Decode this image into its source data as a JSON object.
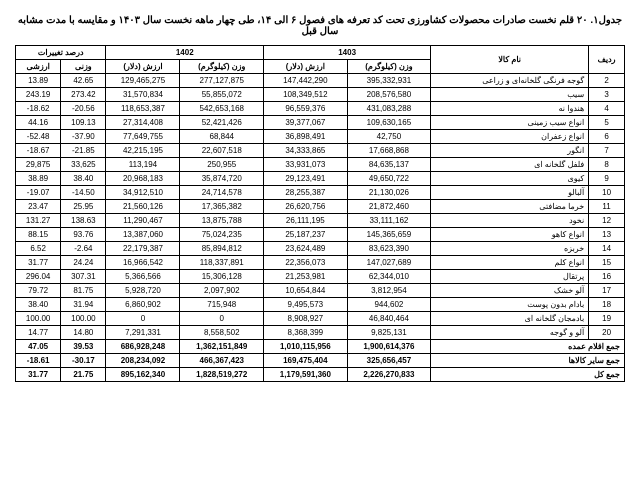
{
  "title": "جدول۱. ۲۰ قلم نخست صادرات محصولات کشاورزی تحت کد تعرفه های فصول ۶ الی ۱۴، طی چهار ماهه نخست سال ۱۴۰۳ و مقایسه با مدت مشابه سال قبل",
  "headers": {
    "row_no": "ردیف",
    "name": "نام کالا",
    "y1403": "1403",
    "y1402": "1402",
    "pct": "درصد تغییرات",
    "weight_kg": "وزن (کیلوگرم)",
    "value_usd": "ارزش (دلار)",
    "weight": "وزنی",
    "value": "ارزشی"
  },
  "rows": [
    {
      "n": "2",
      "name": "گوجه فرنگی گلخانه‌ای و زراعی",
      "w1403": "395,332,931",
      "v1403": "147,442,290",
      "w1402": "277,127,875",
      "v1402": "129,465,275",
      "pw": "42.65",
      "pv": "13.89"
    },
    {
      "n": "3",
      "name": "سیب",
      "w1403": "208,576,580",
      "v1403": "108,349,512",
      "w1402": "55,855,072",
      "v1402": "31,570,834",
      "pw": "273.42",
      "pv": "243.19"
    },
    {
      "n": "4",
      "name": "هندوا نه",
      "w1403": "431,083,288",
      "v1403": "96,559,376",
      "w1402": "542,653,168",
      "v1402": "118,653,387",
      "pw": "-20.56",
      "pv": "-18.62"
    },
    {
      "n": "5",
      "name": "انواع سیب زمینی",
      "w1403": "109,630,165",
      "v1403": "39,377,067",
      "w1402": "52,421,426",
      "v1402": "27,314,408",
      "pw": "109.13",
      "pv": "44.16"
    },
    {
      "n": "6",
      "name": "انواع زعفران",
      "w1403": "42,750",
      "v1403": "36,898,491",
      "w1402": "68,844",
      "v1402": "77,649,755",
      "pw": "-37.90",
      "pv": "-52.48"
    },
    {
      "n": "7",
      "name": "انگور",
      "w1403": "17,668,868",
      "v1403": "34,333,865",
      "w1402": "22,607,518",
      "v1402": "42,215,195",
      "pw": "-21.85",
      "pv": "-18.67"
    },
    {
      "n": "8",
      "name": "فلفل گلخانه ای",
      "w1403": "84,635,137",
      "v1403": "33,931,073",
      "w1402": "250,955",
      "v1402": "113,194",
      "pw": "33,625",
      "pv": "29,875"
    },
    {
      "n": "9",
      "name": "کیوی",
      "w1403": "49,650,722",
      "v1403": "29,123,491",
      "w1402": "35,874,720",
      "v1402": "20,968,183",
      "pw": "38.40",
      "pv": "38.89"
    },
    {
      "n": "10",
      "name": "آلبالو",
      "w1403": "21,130,026",
      "v1403": "28,255,387",
      "w1402": "24,714,578",
      "v1402": "34,912,510",
      "pw": "-14.50",
      "pv": "-19.07"
    },
    {
      "n": "11",
      "name": "خرما مضافتی",
      "w1403": "21,872,460",
      "v1403": "26,620,756",
      "w1402": "17,365,382",
      "v1402": "21,560,126",
      "pw": "25.95",
      "pv": "23.47"
    },
    {
      "n": "12",
      "name": "نخود",
      "w1403": "33,111,162",
      "v1403": "26,111,195",
      "w1402": "13,875,788",
      "v1402": "11,290,467",
      "pw": "138.63",
      "pv": "131.27"
    },
    {
      "n": "13",
      "name": "انواع کاهو",
      "w1403": "145,365,659",
      "v1403": "25,187,237",
      "w1402": "75,024,235",
      "v1402": "13,387,060",
      "pw": "93.76",
      "pv": "88.15"
    },
    {
      "n": "14",
      "name": "خربزه",
      "w1403": "83,623,390",
      "v1403": "23,624,489",
      "w1402": "85,894,812",
      "v1402": "22,179,387",
      "pw": "-2.64",
      "pv": "6.52"
    },
    {
      "n": "15",
      "name": "انواع کلم",
      "w1403": "147,027,689",
      "v1403": "22,356,073",
      "w1402": "118,337,891",
      "v1402": "16,966,542",
      "pw": "24.24",
      "pv": "31.77"
    },
    {
      "n": "16",
      "name": "پرتقال",
      "w1403": "62,344,010",
      "v1403": "21,253,981",
      "w1402": "15,306,128",
      "v1402": "5,366,566",
      "pw": "307.31",
      "pv": "296.04"
    },
    {
      "n": "17",
      "name": "آلو خشک",
      "w1403": "3,812,954",
      "v1403": "10,654,844",
      "w1402": "2,097,902",
      "v1402": "5,928,720",
      "pw": "81.75",
      "pv": "79.72"
    },
    {
      "n": "18",
      "name": "بادام بدون پوست",
      "w1403": "944,602",
      "v1403": "9,495,573",
      "w1402": "715,948",
      "v1402": "6,860,902",
      "pw": "31.94",
      "pv": "38.40"
    },
    {
      "n": "19",
      "name": "بادمجان گلخانه ای",
      "w1403": "46,840,464",
      "v1403": "8,908,927",
      "w1402": "0",
      "v1402": "0",
      "pw": "100.00",
      "pv": "100.00"
    },
    {
      "n": "20",
      "name": "آلو و گوجه",
      "w1403": "9,825,131",
      "v1403": "8,368,399",
      "w1402": "8,558,502",
      "v1402": "7,291,331",
      "pw": "14.80",
      "pv": "14.77"
    }
  ],
  "totals": [
    {
      "name": "جمع اقلام عمده",
      "w1403": "1,900,614,376",
      "v1403": "1,010,115,956",
      "w1402": "1,362,151,849",
      "v1402": "686,928,248",
      "pw": "39.53",
      "pv": "47.05"
    },
    {
      "name": "جمع سایر کالاها",
      "w1403": "325,656,457",
      "v1403": "169,475,404",
      "w1402": "466,367,423",
      "v1402": "208,234,092",
      "pw": "-30.17",
      "pv": "-18.61"
    },
    {
      "name": "جمع کل",
      "w1403": "2,226,270,833",
      "v1403": "1,179,591,360",
      "w1402": "1,828,519,272",
      "v1402": "895,162,340",
      "pw": "21.75",
      "pv": "31.77"
    }
  ]
}
